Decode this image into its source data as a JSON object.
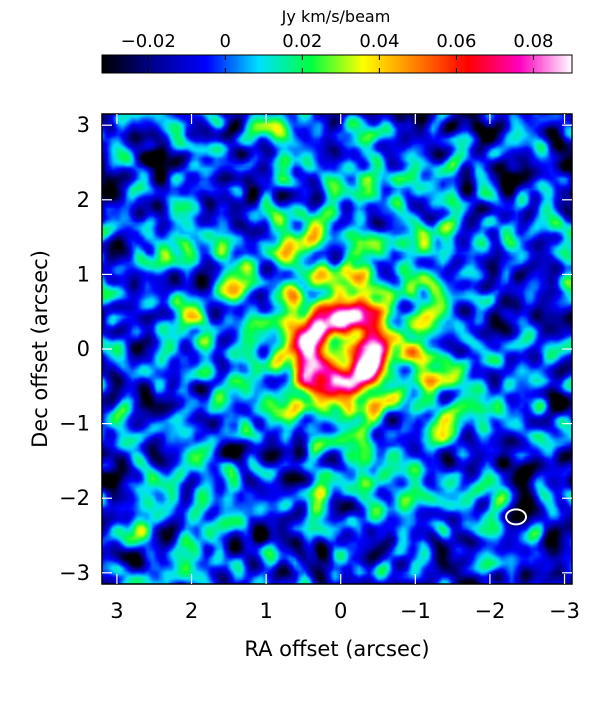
{
  "chart_data": {
    "type": "heatmap",
    "title": "",
    "colorbar": {
      "label": "Jy km/s/beam",
      "range": [
        -0.032,
        0.09
      ],
      "ticks": [
        -0.02,
        0,
        0.02,
        0.04,
        0.06,
        0.08
      ],
      "tick_labels": [
        "−0.02",
        "0",
        "0.02",
        "0.04",
        "0.06",
        "0.08"
      ],
      "colormap": [
        "#000000",
        "#000090",
        "#0000ff",
        "#00e0ff",
        "#00ff40",
        "#ffff00",
        "#ff8000",
        "#ff0000",
        "#ff00c0",
        "#ffffff"
      ]
    },
    "xlabel": "RA offset (arcsec)",
    "ylabel": "Dec offset (arcsec)",
    "xlim": [
      3.2,
      -3.1
    ],
    "ylim": [
      -3.15,
      3.15
    ],
    "xticks": [
      3,
      2,
      1,
      0,
      -1,
      -2,
      -3
    ],
    "xtick_labels": [
      "3",
      "2",
      "1",
      "0",
      "−1",
      "−2",
      "−3"
    ],
    "yticks": [
      3,
      2,
      1,
      0,
      -1,
      -2,
      -3
    ],
    "ytick_labels": [
      "3",
      "2",
      "1",
      "0",
      "−1",
      "−2",
      "−3"
    ],
    "field": {
      "description_units": "arcsec, Jy km/s/beam",
      "background_level": -0.005,
      "halo_peak": 0.03,
      "halo_sigma": 1.2,
      "ring_radius": 0.45,
      "ring_width": 0.18,
      "ring_peak": 0.062,
      "noise_rms": 0.014
    },
    "beam": {
      "x": -2.35,
      "y": -2.25,
      "major": 0.16,
      "minor": 0.12,
      "color": "#ffffff"
    }
  }
}
